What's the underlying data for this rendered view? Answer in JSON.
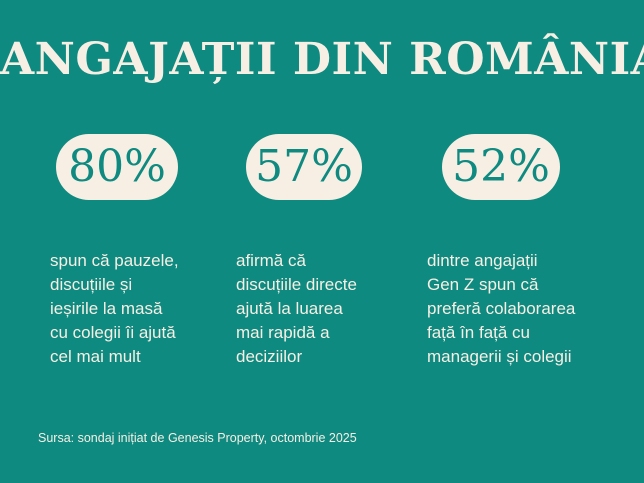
{
  "title": "ANGAJAȚII DIN ROMÂNIA",
  "colors": {
    "background": "#0e8a81",
    "pill": "#f7efe4",
    "text_light": "#f7efe4",
    "text_teal": "#0e8a81"
  },
  "stats": [
    {
      "value": "80%",
      "lines": [
        "spun că pauzele,",
        "discuțiile și",
        "ieșirile la masă",
        "cu colegii îi ajută",
        "cel mai mult"
      ]
    },
    {
      "value": "57%",
      "lines": [
        "afirmă că",
        "discuțiile directe",
        "ajută la luarea",
        "mai rapidă a",
        "deciziilor"
      ]
    },
    {
      "value": "52%",
      "lines": [
        "dintre angajații",
        "Gen Z spun că",
        "preferă colaborarea",
        "față în față cu",
        "managerii și colegii"
      ]
    }
  ],
  "source": "Sursa: sondaj inițiat de Genesis Property, octombrie 2025"
}
